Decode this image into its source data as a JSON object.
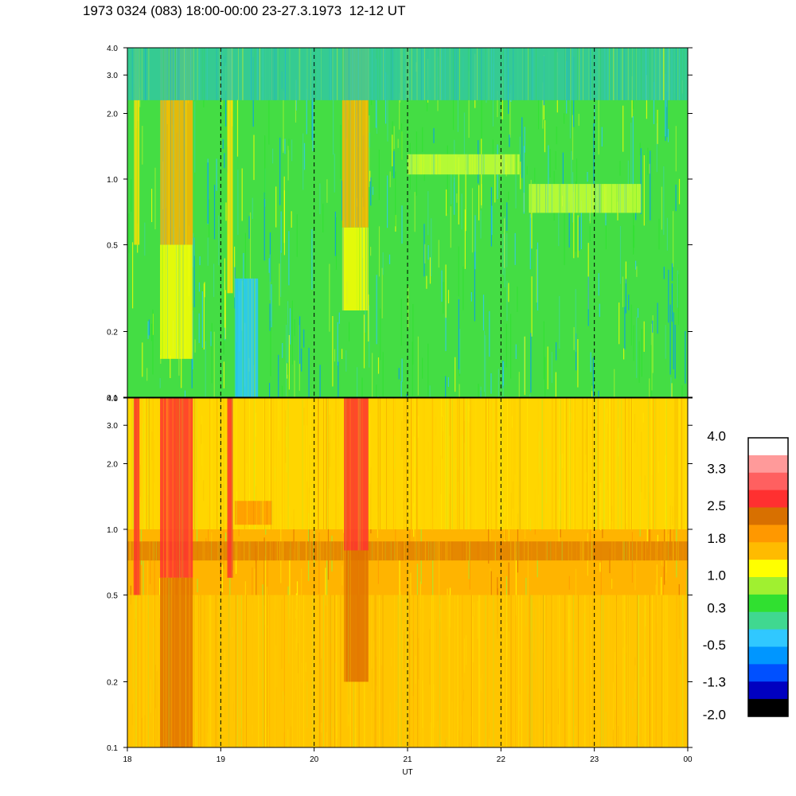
{
  "header": {
    "title": "1973 0324 (083) 18:00-00:00 23-27.3.1973  12-12 UT"
  },
  "chart_data": {
    "type": "heatmap",
    "title": "1973 0324 (083) 18:00-00:00 23-27.3.1973  12-12 UT",
    "xlabel": "UT",
    "x_tick_labels": [
      "18",
      "19",
      "20",
      "21",
      "22",
      "23",
      "00"
    ],
    "x_range_hours": [
      18,
      24
    ],
    "y_scale": "log",
    "y_range": [
      0.1,
      4.0
    ],
    "y_tick_labels": [
      "4.0",
      "3.0",
      "2.0",
      "1.0",
      "0.5",
      "0.2",
      "0.1"
    ],
    "y_tick_values": [
      4.0,
      3.0,
      2.0,
      1.0,
      0.5,
      0.2,
      0.1
    ],
    "vertical_guides_at_hours": [
      19,
      20,
      21,
      22,
      23
    ],
    "panels": [
      {
        "name": "upper",
        "background_color": "#44dd44",
        "features": [
          {
            "kind": "band",
            "start": 18.07,
            "end": 18.13,
            "ylo": 0.5,
            "yhi": 4.0,
            "color": "#ffe000"
          },
          {
            "kind": "band",
            "start": 18.35,
            "end": 18.7,
            "ylo": 0.5,
            "yhi": 4.0,
            "color": "#ffb400"
          },
          {
            "kind": "band",
            "start": 18.35,
            "end": 18.7,
            "ylo": 0.15,
            "yhi": 0.5,
            "color": "#ffff00"
          },
          {
            "kind": "band",
            "start": 19.07,
            "end": 19.13,
            "ylo": 0.3,
            "yhi": 4.0,
            "color": "#ffe000"
          },
          {
            "kind": "band",
            "start": 19.15,
            "end": 19.4,
            "ylo": 0.1,
            "yhi": 0.35,
            "color": "#2ac8ff"
          },
          {
            "kind": "band",
            "start": 20.3,
            "end": 20.58,
            "ylo": 0.6,
            "yhi": 4.0,
            "color": "#ffb400"
          },
          {
            "kind": "band",
            "start": 20.3,
            "end": 20.58,
            "ylo": 0.25,
            "yhi": 0.6,
            "color": "#ffff00"
          },
          {
            "kind": "band",
            "start": 18.0,
            "end": 24.0,
            "ylo": 2.3,
            "yhi": 4.0,
            "color": "#32c8a0"
          },
          {
            "kind": "band",
            "start": 21.0,
            "end": 22.2,
            "ylo": 1.05,
            "yhi": 1.3,
            "color": "#c8ff32"
          },
          {
            "kind": "band",
            "start": 22.3,
            "end": 23.5,
            "ylo": 0.7,
            "yhi": 0.95,
            "color": "#c8ff32"
          }
        ]
      },
      {
        "name": "lower",
        "background_color": "#ffb400",
        "features": [
          {
            "kind": "band",
            "start": 18.0,
            "end": 24.0,
            "ylo": 1.0,
            "yhi": 4.0,
            "color": "#ffdc00"
          },
          {
            "kind": "band",
            "start": 18.0,
            "end": 24.0,
            "ylo": 0.72,
            "yhi": 0.88,
            "color": "#e08000"
          },
          {
            "kind": "band",
            "start": 18.0,
            "end": 24.0,
            "ylo": 0.1,
            "yhi": 0.5,
            "color": "#ffc800"
          },
          {
            "kind": "band",
            "start": 18.07,
            "end": 18.13,
            "ylo": 0.5,
            "yhi": 4.0,
            "color": "#ff3030"
          },
          {
            "kind": "band",
            "start": 18.35,
            "end": 18.7,
            "ylo": 0.6,
            "yhi": 4.0,
            "color": "#ff3030"
          },
          {
            "kind": "band",
            "start": 18.35,
            "end": 18.7,
            "ylo": 0.1,
            "yhi": 0.6,
            "color": "#e07000"
          },
          {
            "kind": "band",
            "start": 19.07,
            "end": 19.13,
            "ylo": 0.6,
            "yhi": 4.0,
            "color": "#ff3030"
          },
          {
            "kind": "band",
            "start": 20.32,
            "end": 20.58,
            "ylo": 0.8,
            "yhi": 4.0,
            "color": "#ff3030"
          },
          {
            "kind": "band",
            "start": 20.32,
            "end": 20.58,
            "ylo": 0.2,
            "yhi": 0.8,
            "color": "#e07000"
          },
          {
            "kind": "band",
            "start": 19.15,
            "end": 19.55,
            "ylo": 1.05,
            "yhi": 1.35,
            "color": "#ff9800"
          }
        ]
      }
    ],
    "colorbar": {
      "labels": [
        "4.0",
        "3.3",
        "2.5",
        "1.8",
        "1.0",
        "0.3",
        "-0.5",
        "-1.3",
        "-2.0"
      ],
      "label_values": [
        4.0,
        3.3,
        2.5,
        1.8,
        1.0,
        0.3,
        -0.5,
        -1.3,
        -2.0
      ],
      "range": [
        -2.0,
        4.0
      ],
      "colors": [
        "#ffffff",
        "#ff9a9a",
        "#ff6060",
        "#ff3030",
        "#d87000",
        "#ff9800",
        "#ffbb00",
        "#ffff00",
        "#a0f030",
        "#30e030",
        "#40d890",
        "#30c8ff",
        "#0096ff",
        "#0050ff",
        "#0000c0",
        "#000000"
      ]
    }
  }
}
